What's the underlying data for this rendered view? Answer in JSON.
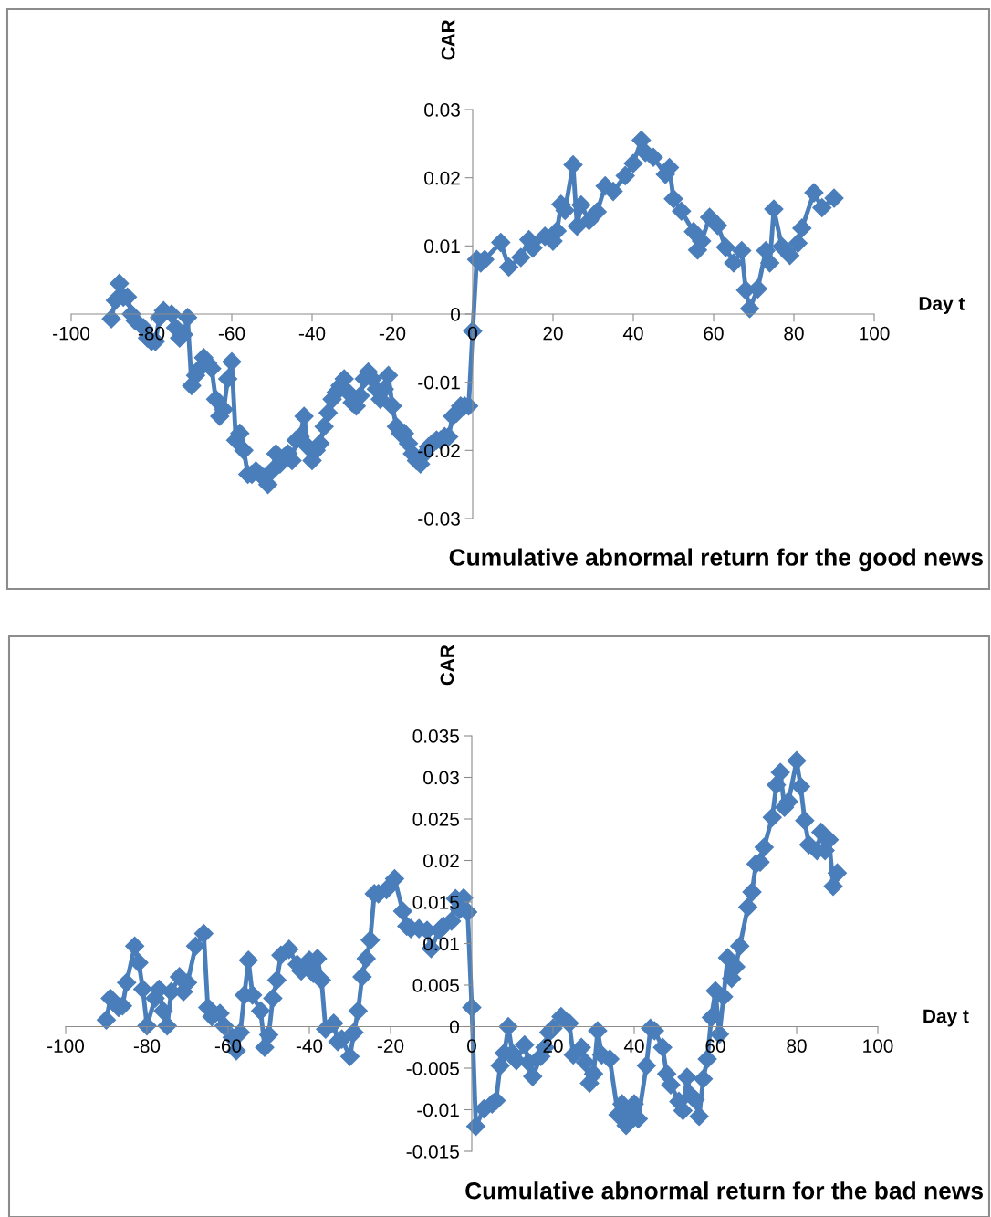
{
  "chart_data": [
    {
      "type": "line",
      "title": "Cumulative abnormal return for the good news",
      "xlabel": "Day t",
      "ylabel": "CAR",
      "xlim": [
        -100,
        100
      ],
      "xticks": [
        -100,
        -80,
        -60,
        -40,
        -20,
        0,
        20,
        40,
        60,
        80,
        100
      ],
      "ylim": [
        -0.03,
        0.03
      ],
      "yticks": [
        -0.03,
        -0.02,
        -0.01,
        0,
        0.01,
        0.02,
        0.03
      ],
      "grid": false,
      "legend": false,
      "marker": "diamond",
      "line_style": "solid",
      "series": [
        {
          "color": "#4a7ebb",
          "x": [
            -90,
            -89,
            -88,
            -87,
            -86,
            -85,
            -84,
            -82,
            -81,
            -80,
            -79,
            -78,
            -77,
            -75,
            -74,
            -73,
            -72,
            -71,
            -70,
            -69,
            -68,
            -67,
            -66,
            -65,
            -64,
            -63,
            -62,
            -61,
            -60,
            -59,
            -58,
            -57,
            -56,
            -55,
            -54,
            -53,
            -52,
            -51,
            -50,
            -49,
            -48,
            -47,
            -46,
            -45,
            -44,
            -43,
            -42,
            -41,
            -40,
            -39,
            -38,
            -37,
            -36,
            -35,
            -34,
            -33,
            -32,
            -31,
            -30,
            -29,
            -28,
            -27,
            -26,
            -25,
            -24,
            -23,
            -22,
            -21,
            -20,
            -19,
            -18,
            -17,
            -16,
            -15,
            -14,
            -13,
            -12,
            -11,
            -10,
            -9,
            -8,
            -7,
            -6,
            -5,
            -4,
            -3,
            -2,
            -1,
            0,
            1,
            2,
            3,
            7,
            9,
            12,
            14,
            15,
            18,
            20,
            21,
            22,
            23,
            25,
            26,
            27,
            29,
            31,
            33,
            35,
            38,
            40,
            42,
            43,
            45,
            48,
            49,
            50,
            52,
            55,
            56,
            57,
            59,
            61,
            63,
            65,
            67,
            68,
            69,
            71,
            73,
            74,
            75,
            77,
            79,
            81,
            82,
            85,
            87,
            90
          ],
          "values": [
            -0.0007,
            0.002,
            0.0045,
            0.0025,
            0.0025,
            0,
            -0.001,
            -0.002,
            -0.0035,
            -0.004,
            -0.004,
            -0.0005,
            0.0005,
            0,
            -0.002,
            -0.0035,
            -0.003,
            -0.0005,
            -0.0105,
            -0.009,
            -0.008,
            -0.0064,
            -0.0072,
            -0.008,
            -0.0125,
            -0.015,
            -0.014,
            -0.0095,
            -0.007,
            -0.0185,
            -0.0175,
            -0.02,
            -0.0235,
            -0.0235,
            -0.023,
            -0.0235,
            -0.024,
            -0.025,
            -0.023,
            -0.0205,
            -0.022,
            -0.021,
            -0.0205,
            -0.0215,
            -0.0185,
            -0.018,
            -0.015,
            -0.0195,
            -0.0215,
            -0.02,
            -0.019,
            -0.0165,
            -0.0145,
            -0.0125,
            -0.0115,
            -0.0105,
            -0.0095,
            -0.0115,
            -0.013,
            -0.0135,
            -0.012,
            -0.0095,
            -0.0085,
            -0.0095,
            -0.011,
            -0.0125,
            -0.011,
            -0.009,
            -0.0135,
            -0.0165,
            -0.0175,
            -0.0175,
            -0.019,
            -0.0205,
            -0.0215,
            -0.022,
            -0.0205,
            -0.0195,
            -0.019,
            -0.0185,
            -0.0185,
            -0.018,
            -0.018,
            -0.015,
            -0.0145,
            -0.0135,
            -0.0135,
            -0.0135,
            -0.0025,
            0.008,
            0.0075,
            0.008,
            0.0105,
            0.0069,
            0.0083,
            0.0109,
            0.0097,
            0.0114,
            0.0107,
            0.0122,
            0.0161,
            0.0152,
            0.0219,
            0.0129,
            0.016,
            0.0137,
            0.015,
            0.0188,
            0.018,
            0.0203,
            0.0221,
            0.0255,
            0.0237,
            0.023,
            0.0205,
            0.0215,
            0.0169,
            0.0151,
            0.0121,
            0.0094,
            0.0107,
            0.0142,
            0.013,
            0.0098,
            0.0075,
            0.0093,
            0.0035,
            0.0008,
            0.0037,
            0.0093,
            0.0075,
            0.0154,
            0.0099,
            0.0086,
            0.0104,
            0.0126,
            0.0178,
            0.0156,
            0.017
          ]
        }
      ]
    },
    {
      "type": "line",
      "title": "Cumulative abnormal return for the bad news",
      "xlabel": "Day t",
      "ylabel": "CAR",
      "xlim": [
        -100,
        100
      ],
      "xticks": [
        -100,
        -80,
        -60,
        -40,
        -20,
        0,
        20,
        40,
        60,
        80,
        100
      ],
      "ylim": [
        -0.015,
        0.035
      ],
      "yticks": [
        -0.015,
        -0.01,
        -0.005,
        0,
        0.005,
        0.01,
        0.015,
        0.02,
        0.025,
        0.03,
        0.035
      ],
      "grid": false,
      "legend": false,
      "marker": "diamond",
      "line_style": "solid",
      "series": [
        {
          "color": "#4a7ebb",
          "x": [
            -90,
            -89,
            -87,
            -86,
            -85,
            -83,
            -82,
            -81,
            -80,
            -78,
            -77,
            -76,
            -75,
            -74,
            -72,
            -71,
            -70,
            -68,
            -66,
            -65,
            -64,
            -62,
            -61,
            -59,
            -58,
            -57,
            -56,
            -55,
            -54,
            -52,
            -51,
            -50,
            -49,
            -48,
            -47,
            -45,
            -43,
            -42,
            -40,
            -39,
            -38,
            -37,
            -36,
            -34,
            -33,
            -32,
            -30,
            -29,
            -28,
            -27,
            -26,
            -25,
            -24,
            -23,
            -21,
            -19,
            -17,
            -16,
            -15,
            -13,
            -11,
            -10,
            -8,
            -7,
            -5,
            -4,
            -3,
            -2,
            -1,
            0,
            1,
            3,
            5,
            6,
            7,
            8,
            9,
            10,
            11,
            13,
            14,
            15,
            17,
            18,
            19,
            20,
            22,
            24,
            25,
            27,
            28,
            29,
            30,
            31,
            32,
            34,
            36,
            37,
            38,
            39,
            40,
            41,
            43,
            44,
            45,
            47,
            48,
            49,
            51,
            52,
            53,
            54,
            55,
            56,
            57,
            58,
            59,
            60,
            61,
            62,
            63,
            64,
            65,
            66,
            68,
            69,
            70,
            71,
            72,
            74,
            75,
            76,
            77,
            78,
            80,
            81,
            82,
            83,
            85,
            86,
            87,
            88,
            89,
            90
          ],
          "values": [
            0.0008,
            0.0034,
            0.0023,
            0.0025,
            0.0053,
            0.0097,
            0.0077,
            0.0045,
            0.0001,
            0.0034,
            0.0045,
            0.0019,
            0.0001,
            0.0042,
            0.006,
            0.0042,
            0.0053,
            0.0097,
            0.0112,
            0.0023,
            0.0012,
            0.0016,
            0.0001,
            -0.0013,
            -0.0029,
            -0.0007,
            0.0038,
            0.008,
            0.0038,
            0.0019,
            -0.0025,
            -0.001,
            0.0034,
            0.0056,
            0.0086,
            0.0093,
            0.0075,
            0.0067,
            0.008,
            0.0064,
            0.0082,
            0.0056,
            -0.0003,
            0.0004,
            -0.0018,
            -0.0015,
            -0.0036,
            -0.0007,
            0.0019,
            0.006,
            0.0082,
            0.0104,
            0.016,
            0.016,
            0.0165,
            0.0178,
            0.0139,
            0.0121,
            0.0118,
            0.0118,
            0.0116,
            0.0094,
            0.0116,
            0.0121,
            0.0127,
            0.0154,
            0.0141,
            0.0155,
            0.0138,
            0.0023,
            -0.012,
            -0.0099,
            -0.0093,
            -0.0089,
            -0.0047,
            -0.0032,
            0.0,
            -0.0032,
            -0.0041,
            -0.0022,
            -0.0043,
            -0.006,
            -0.0036,
            -0.0025,
            -0.0007,
            -0.0002,
            0.0012,
            0.0004,
            -0.0034,
            -0.0025,
            -0.0043,
            -0.0068,
            -0.0057,
            -0.0005,
            -0.0034,
            -0.0039,
            -0.0106,
            -0.0093,
            -0.0119,
            -0.0104,
            -0.0093,
            -0.0111,
            -0.0047,
            -0.0002,
            -0.0005,
            -0.0025,
            -0.0057,
            -0.007,
            -0.009,
            -0.0101,
            -0.0061,
            -0.0083,
            -0.0088,
            -0.0108,
            -0.0063,
            -0.0039,
            0.0011,
            0.0043,
            -0.0009,
            0.0036,
            0.0083,
            0.0058,
            0.0072,
            0.0097,
            0.0144,
            0.0162,
            0.0196,
            0.0198,
            0.0216,
            0.0252,
            0.0291,
            0.0306,
            0.0264,
            0.0271,
            0.032,
            0.0289,
            0.0248,
            0.0219,
            0.0212,
            0.0234,
            0.0212,
            0.0225,
            0.0169,
            0.0185
          ]
        }
      ]
    }
  ]
}
